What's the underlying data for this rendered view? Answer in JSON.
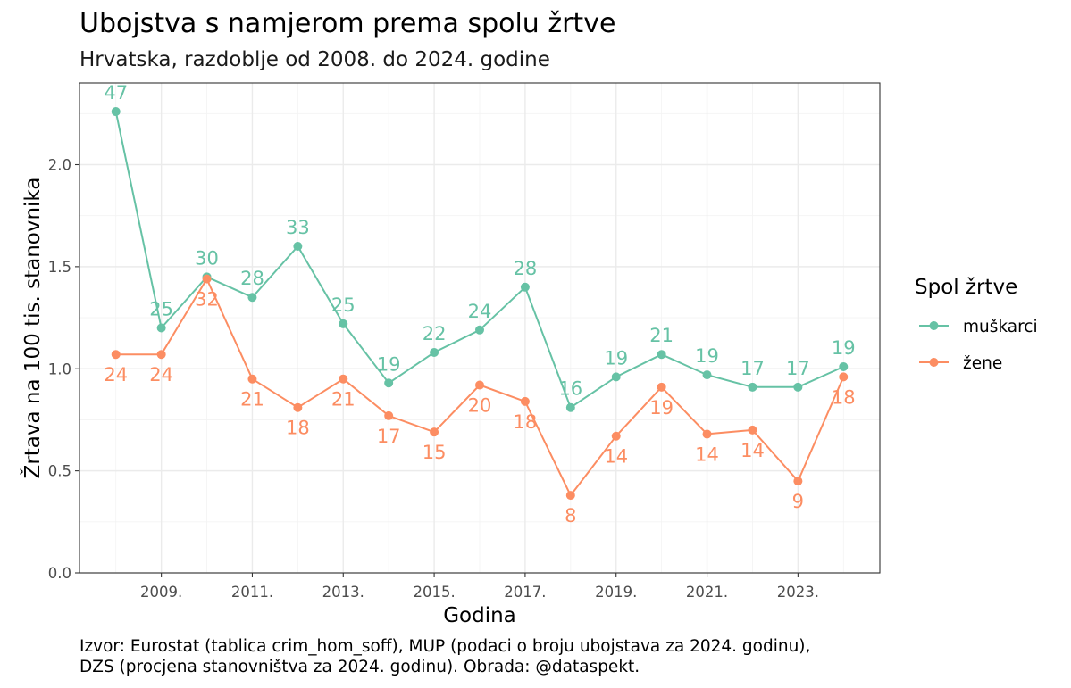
{
  "chart_data": {
    "type": "line",
    "title": "Ubojstva s namjerom prema spolu žrtve",
    "subtitle": "Hrvatska, razdoblje od 2008. do 2024. godine",
    "xlabel": "Godina",
    "ylabel": "Žrtava na 100 tis. stanovnika",
    "x": [
      2008,
      2009,
      2010,
      2011,
      2012,
      2013,
      2014,
      2015,
      2016,
      2017,
      2018,
      2019,
      2020,
      2021,
      2022,
      2023,
      2024
    ],
    "x_ticks": [
      2009,
      2011,
      2013,
      2015,
      2017,
      2019,
      2021,
      2023
    ],
    "x_tick_labels": [
      "2009.",
      "2011.",
      "2013.",
      "2015.",
      "2017.",
      "2019.",
      "2021.",
      "2023."
    ],
    "xlim": [
      2007.2,
      2024.8
    ],
    "ylim": [
      0,
      2.4
    ],
    "y_ticks": [
      0,
      0.5,
      1,
      1.5,
      2
    ],
    "y_tick_labels": [
      "0.0",
      "0.5",
      "1.0",
      "1.5",
      "2.0"
    ],
    "grid": true,
    "legend": {
      "title": "Spol žrtve",
      "placement": "right"
    },
    "series": [
      {
        "name": "muškarci",
        "color": "#66c2a5",
        "values": [
          2.26,
          1.2,
          1.45,
          1.35,
          1.6,
          1.22,
          0.93,
          1.08,
          1.19,
          1.4,
          0.81,
          0.96,
          1.07,
          0.97,
          0.91,
          0.91,
          1.01
        ],
        "labels": [
          "47",
          "25",
          "30",
          "28",
          "33",
          "25",
          "19",
          "22",
          "24",
          "28",
          "16",
          "19",
          "21",
          "19",
          "17",
          "17",
          "19"
        ]
      },
      {
        "name": "žene",
        "color": "#fc8d62",
        "values": [
          1.07,
          1.07,
          1.44,
          0.95,
          0.81,
          0.95,
          0.77,
          0.69,
          0.92,
          0.84,
          0.38,
          0.67,
          0.91,
          0.68,
          0.7,
          0.45,
          0.96
        ],
        "labels": [
          "24",
          "24",
          "32",
          "21",
          "18",
          "21",
          "17",
          "15",
          "20",
          "18",
          "8",
          "14",
          "19",
          "14",
          "14",
          "9",
          "18"
        ]
      }
    ],
    "caption": [
      "Izvor: Eurostat (tablica crim_hom_soff), MUP (podaci o broju ubojstava za 2024. godinu),",
      "DZS (procjena stanovništva za 2024. godinu). Obrada: @dataspekt."
    ]
  }
}
